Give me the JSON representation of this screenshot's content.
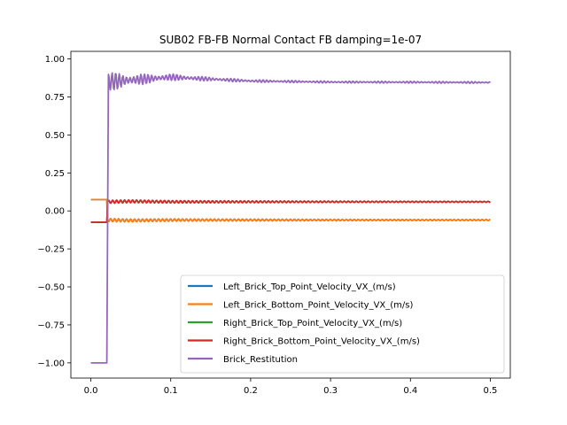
{
  "chart_data": {
    "type": "line",
    "title": "SUB02 FB-FB Normal Contact FB damping=1e-07",
    "xlabel": "",
    "ylabel": "",
    "xlim": [
      -0.025,
      0.525
    ],
    "ylim": [
      -1.1,
      1.05
    ],
    "xticks": [
      0.0,
      0.1,
      0.2,
      0.3,
      0.4,
      0.5
    ],
    "xtick_labels": [
      "0.0",
      "0.1",
      "0.2",
      "0.3",
      "0.4",
      "0.5"
    ],
    "yticks": [
      1.0,
      0.75,
      0.5,
      0.25,
      0.0,
      -0.25,
      -0.5,
      -0.75,
      -1.0
    ],
    "ytick_labels": [
      "1.00",
      "0.75",
      "0.50",
      "0.25",
      "0.00",
      "−0.25",
      "−0.50",
      "−0.75",
      "−1.00"
    ],
    "grid": false,
    "legend_position": "lower-right",
    "series": [
      {
        "name": "Left_Brick_Top_Point_Velocity_VX_(m/s)",
        "color": "#1f77b4",
        "points": [
          [
            0.0,
            0.075
          ],
          [
            0.02,
            0.075
          ],
          [
            0.021,
            -0.06
          ],
          [
            0.05,
            -0.063
          ],
          [
            0.1,
            -0.06
          ],
          [
            0.2,
            -0.06
          ],
          [
            0.3,
            -0.06
          ],
          [
            0.4,
            -0.06
          ],
          [
            0.5,
            -0.06
          ]
        ]
      },
      {
        "name": "Left_Brick_Bottom_Point_Velocity_VX_(m/s)",
        "color": "#ff7f0e",
        "points": [
          [
            0.0,
            0.075
          ],
          [
            0.02,
            0.075
          ],
          [
            0.021,
            -0.06
          ],
          [
            0.05,
            -0.063
          ],
          [
            0.1,
            -0.06
          ],
          [
            0.2,
            -0.06
          ],
          [
            0.3,
            -0.06
          ],
          [
            0.4,
            -0.06
          ],
          [
            0.5,
            -0.06
          ]
        ]
      },
      {
        "name": "Right_Brick_Top_Point_Velocity_VX_(m/s)",
        "color": "#2ca02c",
        "points": [
          [
            0.0,
            -0.075
          ],
          [
            0.02,
            -0.075
          ],
          [
            0.021,
            0.06
          ],
          [
            0.05,
            0.063
          ],
          [
            0.1,
            0.06
          ],
          [
            0.2,
            0.06
          ],
          [
            0.3,
            0.06
          ],
          [
            0.4,
            0.06
          ],
          [
            0.5,
            0.06
          ]
        ]
      },
      {
        "name": "Right_Brick_Bottom_Point_Velocity_VX_(m/s)",
        "color": "#d62728",
        "points": [
          [
            0.0,
            -0.075
          ],
          [
            0.02,
            -0.075
          ],
          [
            0.021,
            0.06
          ],
          [
            0.05,
            0.063
          ],
          [
            0.1,
            0.06
          ],
          [
            0.2,
            0.06
          ],
          [
            0.3,
            0.06
          ],
          [
            0.4,
            0.06
          ],
          [
            0.5,
            0.06
          ]
        ]
      },
      {
        "name": "Brick_Restitution",
        "color": "#9467bd",
        "points": [
          [
            0.0,
            -1.0
          ],
          [
            0.02,
            -1.0
          ],
          [
            0.022,
            0.85
          ],
          [
            0.1,
            0.88
          ],
          [
            0.2,
            0.855
          ],
          [
            0.3,
            0.848
          ],
          [
            0.4,
            0.847
          ],
          [
            0.5,
            0.845
          ]
        ]
      }
    ]
  }
}
